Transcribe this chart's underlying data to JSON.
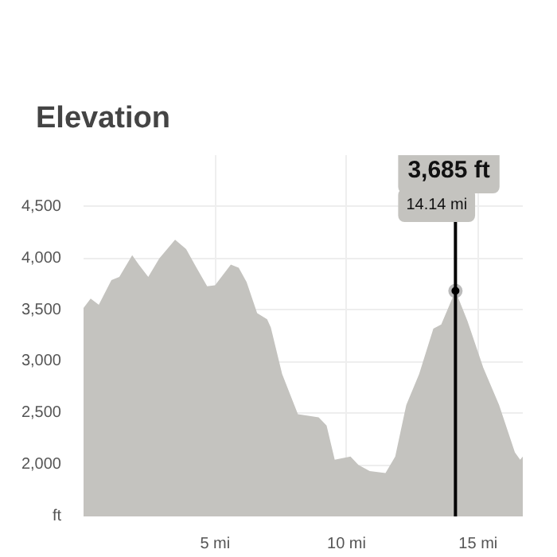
{
  "chart_data": {
    "type": "area",
    "title": "Elevation",
    "x": [
      0,
      0.27,
      0.58,
      1.06,
      1.36,
      1.85,
      2.1,
      2.46,
      2.88,
      3.48,
      3.9,
      4.27,
      4.7,
      5.0,
      5.6,
      5.9,
      6.2,
      6.6,
      6.98,
      7.12,
      7.55,
      8.15,
      8.94,
      9.24,
      9.55,
      10.15,
      10.45,
      10.88,
      11.48,
      11.85,
      12.27,
      12.76,
      13.3,
      13.6,
      14.14,
      14.6,
      15.2,
      15.8,
      16.4,
      16.6,
      16.7
    ],
    "values": [
      3520,
      3610,
      3550,
      3790,
      3820,
      4030,
      3940,
      3820,
      4000,
      4180,
      4090,
      3920,
      3730,
      3740,
      3940,
      3910,
      3770,
      3470,
      3410,
      3330,
      2880,
      2490,
      2460,
      2380,
      2050,
      2080,
      2000,
      1940,
      1920,
      2080,
      2580,
      2880,
      3320,
      3360,
      3685,
      3390,
      2940,
      2580,
      2120,
      2050,
      2080
    ],
    "color": "#c4c3bf",
    "xlim": [
      0,
      16.7
    ],
    "ylim": [
      1500,
      5000
    ],
    "xticks": [
      {
        "value": 5,
        "label": "5 mi"
      },
      {
        "value": 10,
        "label": "10 mi"
      },
      {
        "value": 15,
        "label": "15 mi"
      }
    ],
    "yticks": [
      {
        "value": 1500,
        "label": "ft"
      },
      {
        "value": 2000,
        "label": "2,000"
      },
      {
        "value": 2500,
        "label": "2,500"
      },
      {
        "value": 3000,
        "label": "3,000"
      },
      {
        "value": 3500,
        "label": "3,500"
      },
      {
        "value": 4000,
        "label": "4,000"
      },
      {
        "value": 4500,
        "label": "4,500"
      }
    ],
    "grid": true,
    "ref_lines": [
      {
        "axis": "x",
        "value": 14.14,
        "color": "#000000"
      }
    ],
    "annotations": [
      "3,685 ft",
      "14.14 mi"
    ]
  }
}
